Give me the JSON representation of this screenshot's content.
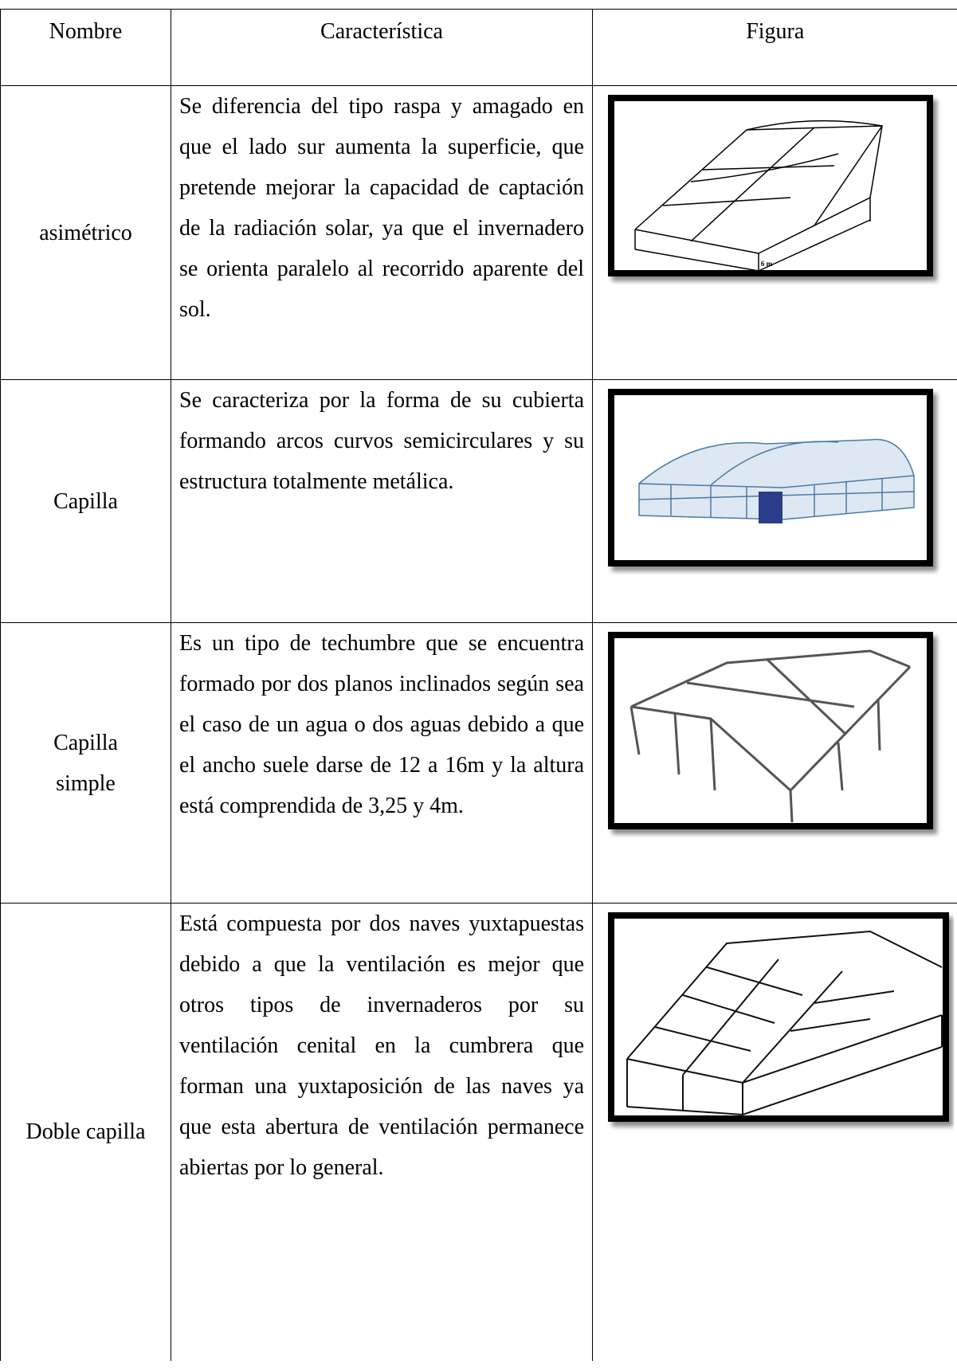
{
  "table": {
    "header": [
      "Nombre",
      "Característica",
      "Figura"
    ],
    "rows": [
      {
        "name": "asimétrico",
        "description": "Se diferencia del tipo raspa y amagado en que el lado sur aumenta la superficie, que pretende mejorar la capacidad de captación de la radiación solar, ya que el invernadero se orienta paralelo al recorrido aparente del sol.",
        "figure_label": "6 m"
      },
      {
        "name": "Capilla",
        "description": "Se caracteriza por la forma de su cubierta formando arcos curvos semicirculares y su estructura totalmente metálica."
      },
      {
        "name": "Capilla simple",
        "description": "Es un tipo de techumbre que se encuentra formado por dos planos inclinados según sea el caso de un agua o dos aguas debido a que el ancho suele darse de 12 a 16m y la altura está comprendida de 3,25 y 4m."
      },
      {
        "name": "Doble capilla",
        "description": "Está compuesta por dos naves yuxtapuestas debido a que la ventilación es mejor que otros tipos de invernaderos por su ventilación cenital en la cumbrera que forman una yuxtaposición de las naves ya que esta abertura de ventilación permanece abiertas por lo general."
      }
    ]
  }
}
